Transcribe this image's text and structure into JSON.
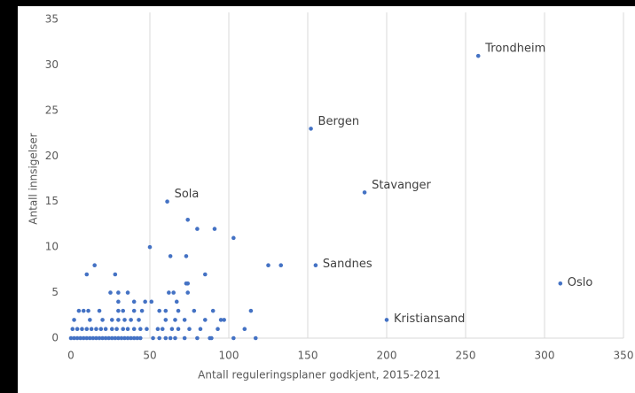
{
  "chart_data": {
    "type": "scatter",
    "xlabel": "Antall reguleringsplaner godkjent, 2015-2021",
    "ylabel": "Antall innsigelser",
    "color": "#4472c4",
    "xlim": [
      0,
      350
    ],
    "xticks": [
      0,
      50,
      100,
      150,
      200,
      250,
      300,
      350
    ],
    "ylim": [
      0,
      35
    ],
    "yticks": [
      0,
      5,
      10,
      15,
      20,
      25,
      30,
      35
    ],
    "grid": "x",
    "x": [
      258,
      152,
      186,
      61,
      155,
      310,
      200,
      50,
      74,
      80,
      91,
      103,
      63,
      73,
      125,
      133,
      15,
      10,
      28,
      85,
      73,
      74,
      65,
      62,
      74,
      25,
      30,
      36,
      0,
      2,
      4,
      6,
      8,
      10,
      12,
      14,
      16,
      18,
      20,
      22,
      24,
      26,
      28,
      30,
      32,
      34,
      36,
      38,
      40,
      42,
      44,
      52,
      56,
      60,
      63,
      66,
      72,
      80,
      88,
      89,
      103,
      117,
      1,
      4,
      7,
      10,
      13,
      16,
      19,
      22,
      26,
      29,
      33,
      36,
      40,
      44,
      48,
      55,
      58,
      64,
      68,
      75,
      82,
      93,
      110,
      2,
      12,
      20,
      26,
      30,
      34,
      38,
      43,
      60,
      66,
      72,
      85,
      95,
      97,
      5,
      8,
      11,
      18,
      30,
      33,
      40,
      45,
      56,
      60,
      68,
      78,
      90,
      114,
      30,
      40,
      47,
      51,
      67
    ],
    "values": [
      31,
      23,
      16,
      15,
      8,
      6,
      2,
      10,
      13,
      12,
      12,
      11,
      9,
      9,
      8,
      8,
      8,
      7,
      7,
      7,
      6,
      6,
      5,
      5,
      5,
      5,
      5,
      5,
      0,
      0,
      0,
      0,
      0,
      0,
      0,
      0,
      0,
      0,
      0,
      0,
      0,
      0,
      0,
      0,
      0,
      0,
      0,
      0,
      0,
      0,
      0,
      0,
      0,
      0,
      0,
      0,
      0,
      0,
      0,
      0,
      0,
      0,
      1,
      1,
      1,
      1,
      1,
      1,
      1,
      1,
      1,
      1,
      1,
      1,
      1,
      1,
      1,
      1,
      1,
      1,
      1,
      1,
      1,
      1,
      1,
      2,
      2,
      2,
      2,
      2,
      2,
      2,
      2,
      2,
      2,
      2,
      2,
      2,
      2,
      3,
      3,
      3,
      3,
      3,
      3,
      3,
      3,
      3,
      3,
      3,
      3,
      3,
      3,
      4,
      4,
      4,
      4,
      4
    ],
    "labels": [
      "Trondheim",
      "Bergen",
      "Stavanger",
      "Sola",
      "Sandnes",
      "Oslo",
      "Kristiansand"
    ]
  }
}
